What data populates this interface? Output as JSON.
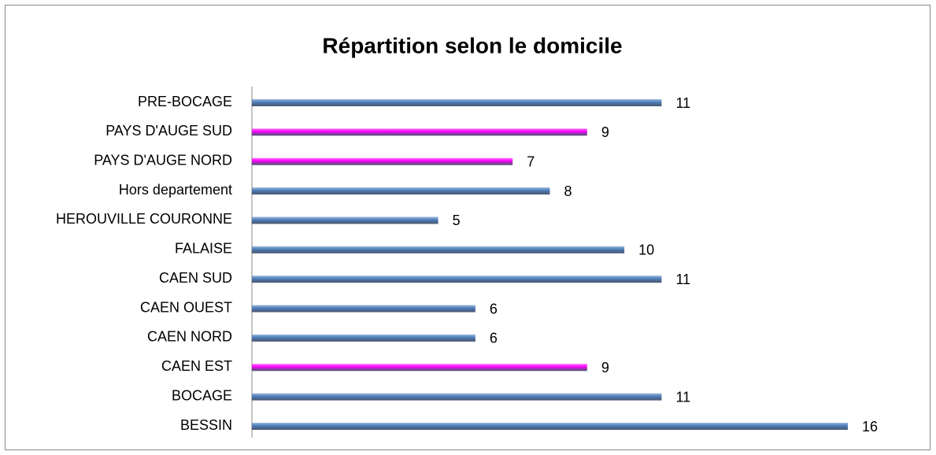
{
  "chart_data": {
    "type": "barh",
    "title": "Répartition selon le domicile",
    "categories": [
      "PRE-BOCAGE",
      "PAYS D'AUGE SUD",
      "PAYS D'AUGE NORD",
      "Hors departement",
      "HEROUVILLE COURONNE",
      "FALAISE",
      "CAEN SUD",
      "CAEN OUEST",
      "CAEN NORD",
      "CAEN EST",
      "BOCAGE",
      "BESSIN"
    ],
    "values": [
      11,
      9,
      7,
      8,
      5,
      10,
      11,
      6,
      6,
      9,
      11,
      16
    ],
    "colors": [
      "#4f81bd",
      "#ff00ff",
      "#ff00ff",
      "#4f81bd",
      "#4f81bd",
      "#4f81bd",
      "#4f81bd",
      "#4f81bd",
      "#4f81bd",
      "#ff00ff",
      "#4f81bd",
      "#4f81bd"
    ]
  }
}
